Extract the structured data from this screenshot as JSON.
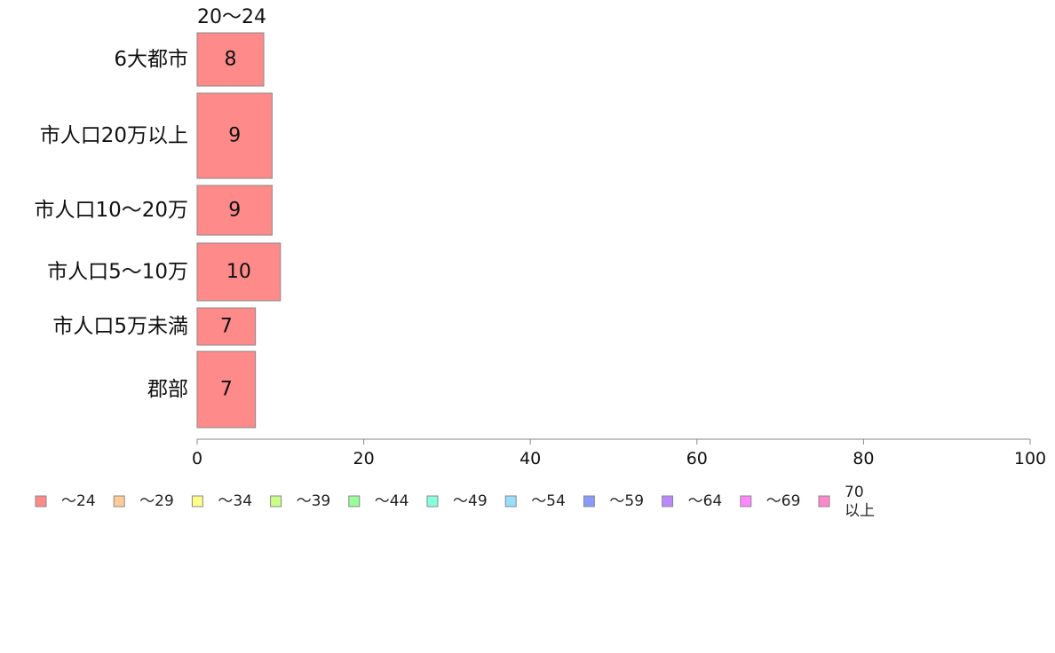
{
  "chart_data": {
    "type": "bar",
    "orientation": "horizontal",
    "stacked": true,
    "categories": [
      "6大都市",
      "市人口20万以上",
      "市人口10〜20万",
      "市人口5〜10万",
      "市人口5万未満",
      "郡部"
    ],
    "series_header": "20〜24",
    "series": [
      {
        "legend": "〜24",
        "color": "#ff8a8a",
        "values": [
          8,
          9,
          9,
          10,
          7,
          7
        ]
      }
    ],
    "legend": [
      {
        "label": "〜24",
        "color": "#ff8a8a"
      },
      {
        "label": "〜29",
        "color": "#ffcc99"
      },
      {
        "label": "〜34",
        "color": "#ffff88"
      },
      {
        "label": "〜39",
        "color": "#ccff88"
      },
      {
        "label": "〜44",
        "color": "#99ff99"
      },
      {
        "label": "〜49",
        "color": "#88ffdd"
      },
      {
        "label": "〜54",
        "color": "#99ddff"
      },
      {
        "label": "〜59",
        "color": "#8899ff"
      },
      {
        "label": "〜64",
        "color": "#bb88ff"
      },
      {
        "label": "〜69",
        "color": "#ff88ff"
      },
      {
        "label": "70\n以上",
        "color": "#ff88cc"
      }
    ],
    "legend_position": "bottom-left",
    "xlim": [
      0,
      100
    ],
    "xticks": [
      0,
      20,
      40,
      60,
      80,
      100
    ],
    "grid": false
  }
}
